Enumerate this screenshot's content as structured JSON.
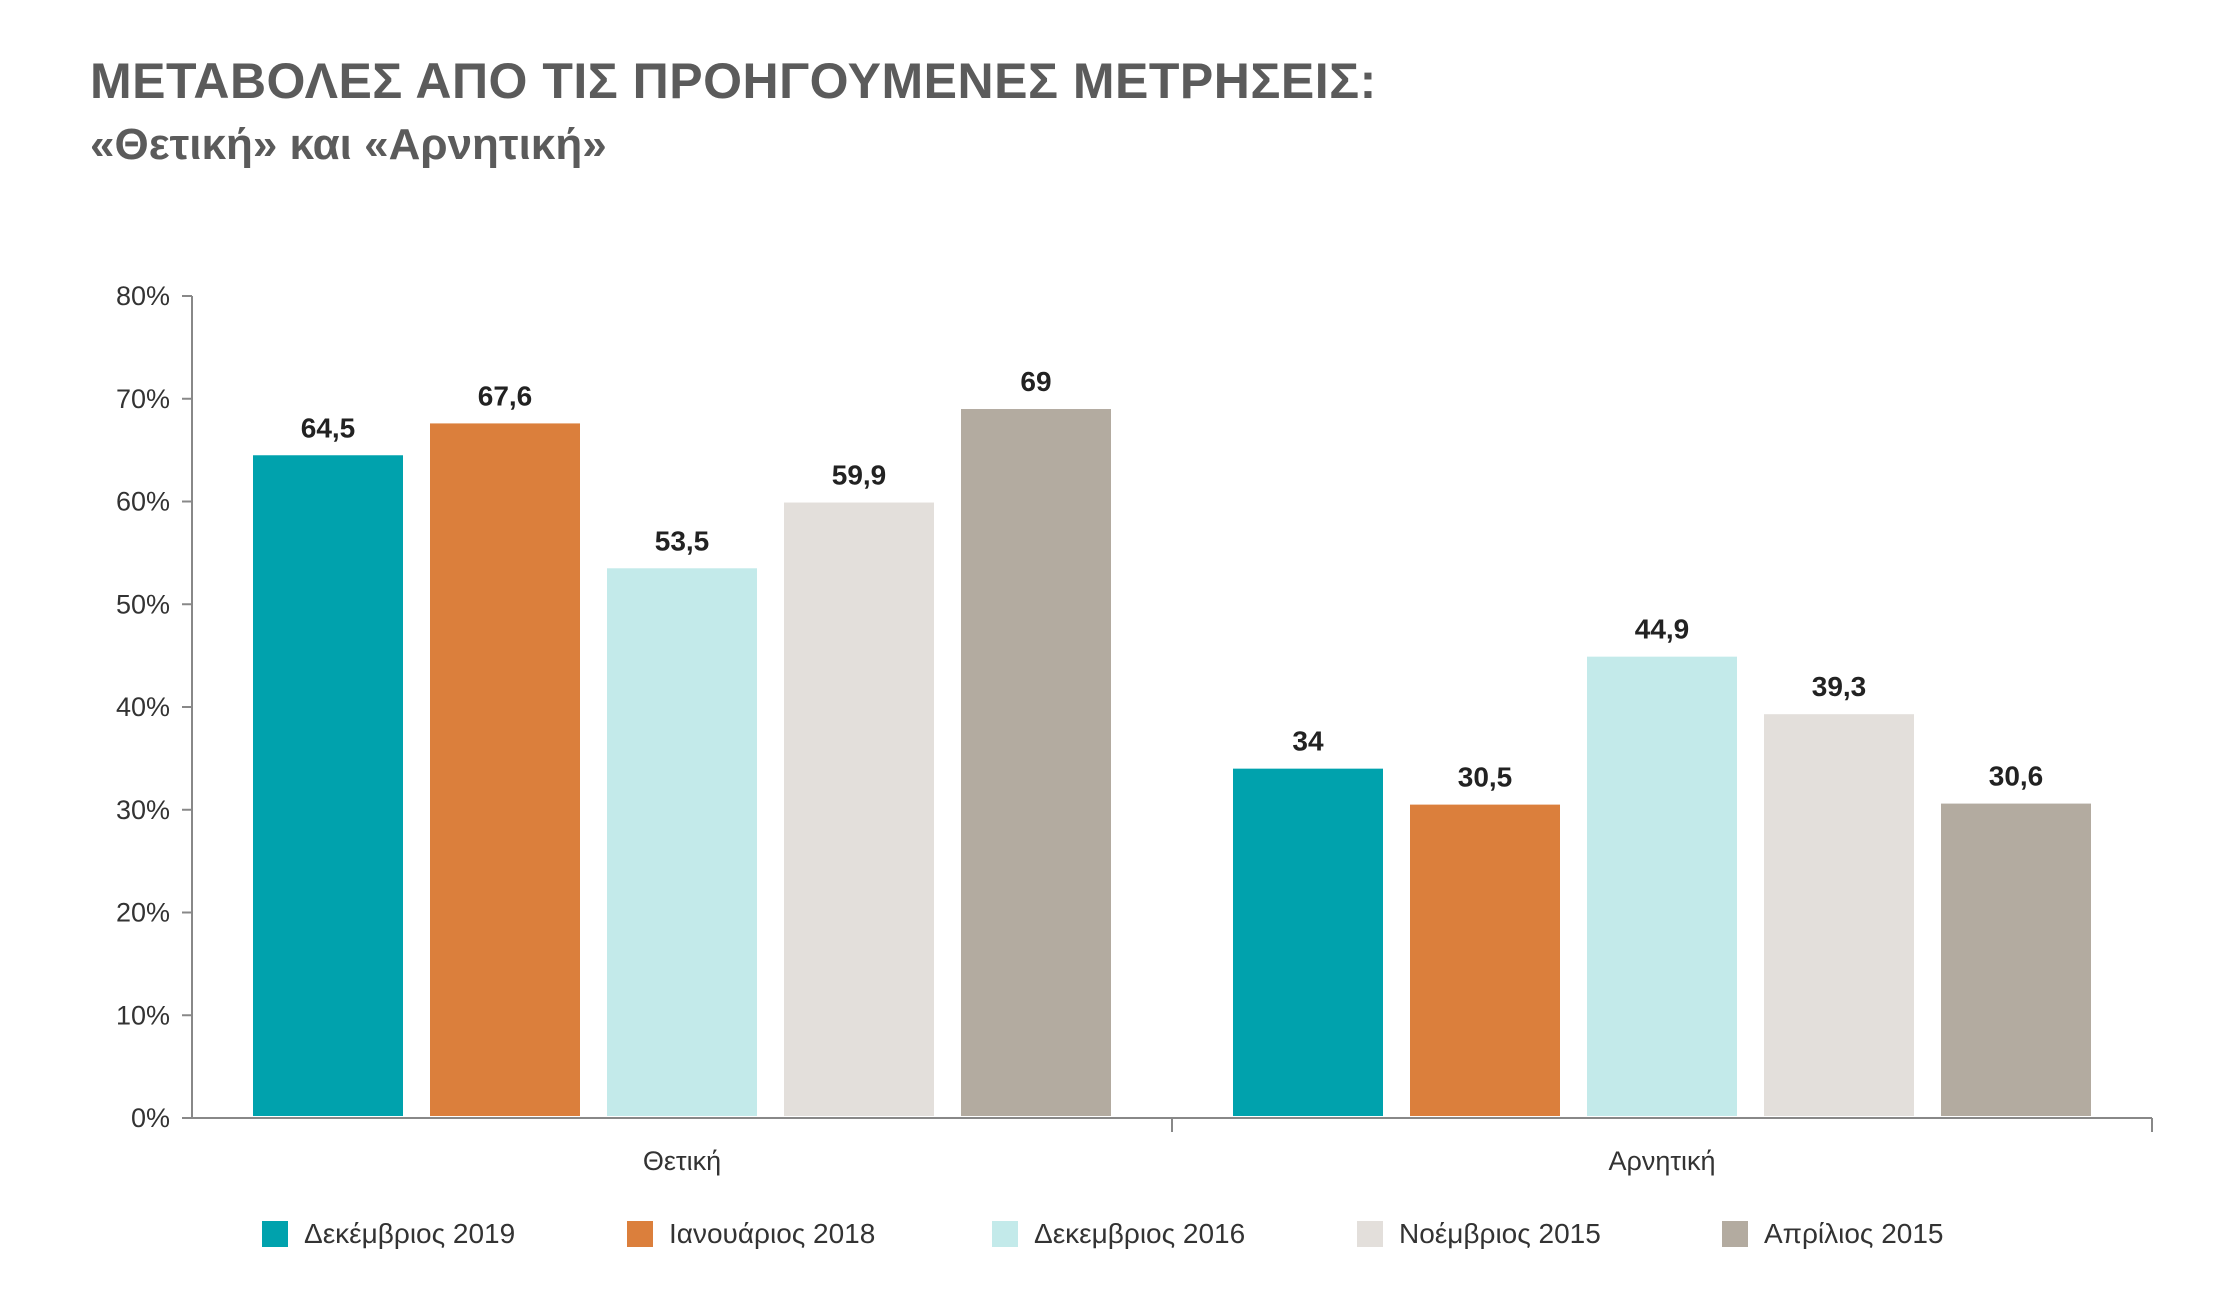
{
  "title": "ΜΕΤΑΒΟΛΕΣ ΑΠΟ ΤΙΣ ΠΡΟΗΓΟΥΜΕΝΕΣ ΜΕΤΡΗΣΕΙΣ:",
  "subtitle": "«Θετική» και «Αρνητική»",
  "chart_data": {
    "type": "bar",
    "categories": [
      "Θετική",
      "Αρνητική"
    ],
    "series": [
      {
        "name": "Δεκέμβριος 2019",
        "color": "#00a2ad",
        "values": [
          64.5,
          34
        ],
        "labels": [
          "64,5",
          "34"
        ]
      },
      {
        "name": "Ιανουάριος 2018",
        "color": "#db7f3c",
        "values": [
          67.6,
          30.5
        ],
        "labels": [
          "67,6",
          "30,5"
        ]
      },
      {
        "name": "Δεκεμβριος 2016",
        "color": "#c3eaea",
        "values": [
          53.5,
          44.9
        ],
        "labels": [
          "53,5",
          "44,9"
        ]
      },
      {
        "name": "Νοέμβριος 2015",
        "color": "#e3dfdb",
        "values": [
          59.9,
          39.3
        ],
        "labels": [
          "59,9",
          "39,3"
        ]
      },
      {
        "name": "Απρίλιος 2015",
        "color": "#b3aba0",
        "values": [
          69,
          30.6
        ],
        "labels": [
          "69",
          "30,6"
        ]
      }
    ],
    "yticks": [
      "0%",
      "10%",
      "20%",
      "30%",
      "40%",
      "50%",
      "60%",
      "70%",
      "80%"
    ],
    "ylim": [
      0,
      80
    ],
    "grid": false,
    "legend_position": "bottom"
  }
}
